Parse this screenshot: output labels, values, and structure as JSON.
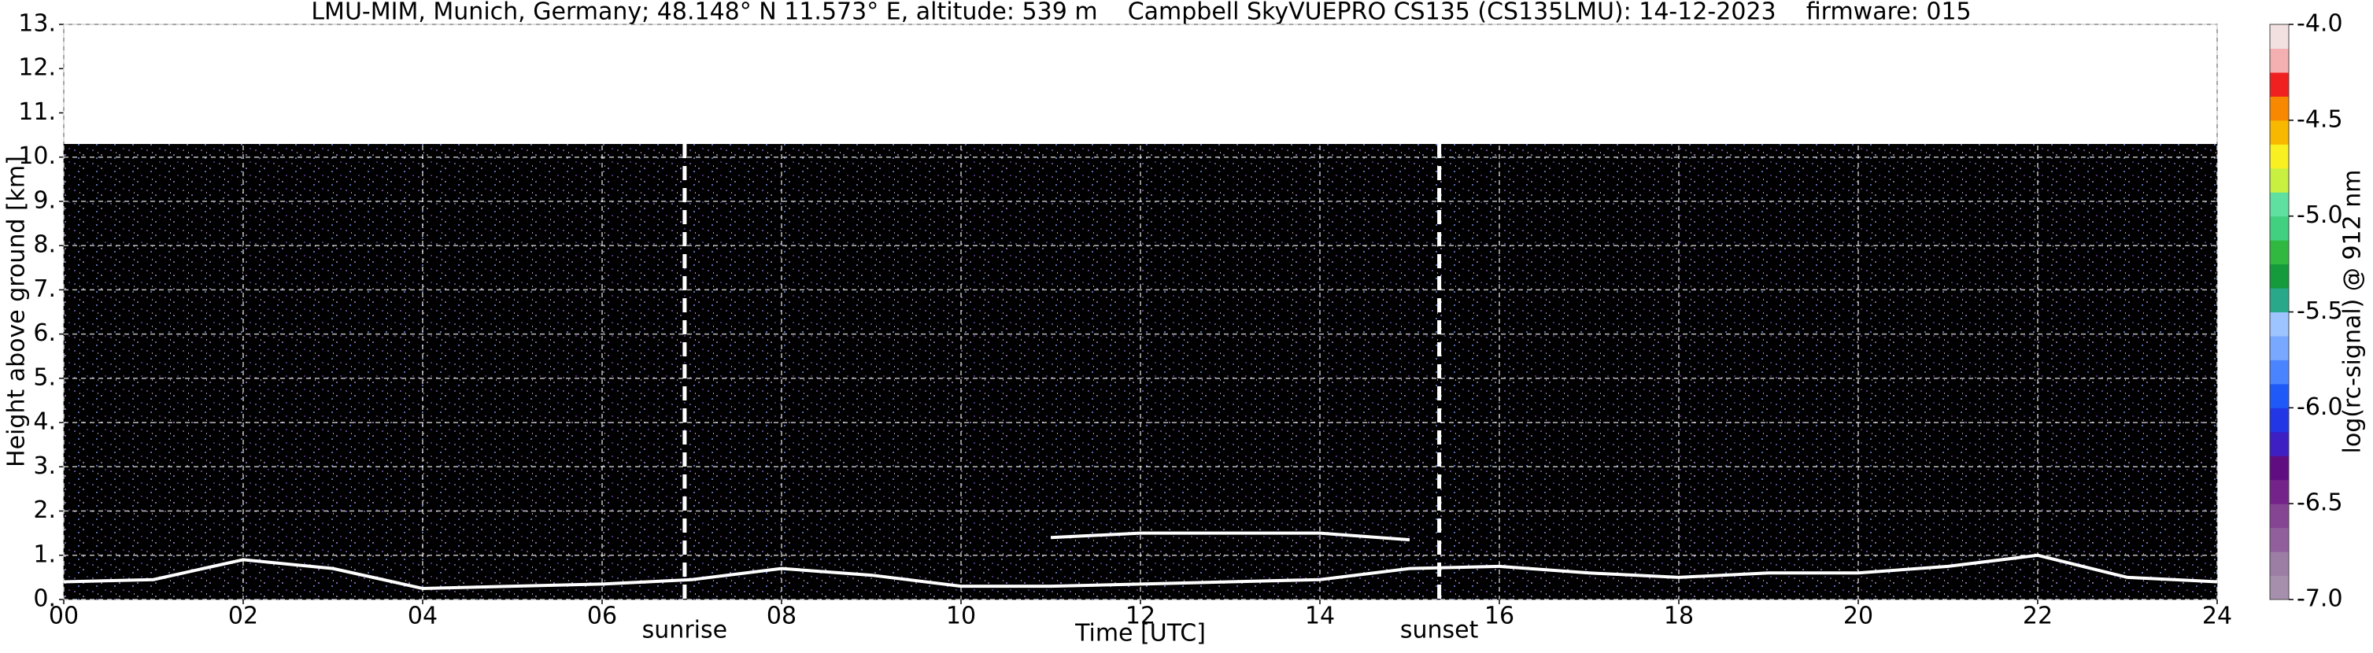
{
  "chart_data": {
    "type": "heatmap",
    "title": "LMU-MIM, Munich, Germany; 48.148° N 11.573° E, altitude: 539 m    Campbell SkyVUEPRO CS135 (CS135LMU): 14-12-2023    firmware: 015",
    "x_label": "Time [UTC]",
    "y_label": "Height above ground [km]",
    "x": [
      0,
      1,
      2,
      3,
      4,
      5,
      6,
      7,
      8,
      9,
      10,
      11,
      12,
      13,
      14,
      15,
      16,
      17,
      18,
      19,
      20,
      21,
      22,
      23,
      24
    ],
    "series": [
      {
        "color": "#ffffff",
        "values": [
          0.4,
          0.45,
          0.9,
          0.7,
          0.25,
          0.3,
          0.35,
          0.45,
          0.7,
          0.55,
          0.3,
          0.3,
          0.35,
          0.4,
          0.45,
          0.7,
          0.75,
          0.6,
          0.5,
          0.6,
          0.6,
          0.75,
          1.0,
          0.5,
          0.4
        ]
      },
      {
        "color": "#ffffff",
        "values": [
          null,
          null,
          null,
          null,
          null,
          null,
          null,
          null,
          null,
          null,
          null,
          1.4,
          1.5,
          1.5,
          1.5,
          1.35,
          null,
          null,
          null,
          null,
          null,
          null,
          null,
          null,
          null
        ]
      }
    ],
    "xlim": [
      0,
      24
    ],
    "xticks": [
      {
        "value": 0,
        "label": "00"
      },
      {
        "value": 2,
        "label": "02"
      },
      {
        "value": 4,
        "label": "04"
      },
      {
        "value": 6,
        "label": "06"
      },
      {
        "value": 8,
        "label": "08"
      },
      10,
      12,
      14,
      16,
      18,
      20,
      22,
      24
    ],
    "ylim": [
      0,
      13
    ],
    "yticks": [
      {
        "value": 0,
        "label": "0."
      },
      {
        "value": 1,
        "label": "1."
      },
      {
        "value": 2,
        "label": "2."
      },
      {
        "value": 3,
        "label": "3."
      },
      {
        "value": 4,
        "label": "4."
      },
      {
        "value": 5,
        "label": "5."
      },
      {
        "value": 6,
        "label": "6."
      },
      {
        "value": 7,
        "label": "7."
      },
      {
        "value": 8,
        "label": "8."
      },
      {
        "value": 9,
        "label": "9."
      },
      {
        "value": 10,
        "label": "10."
      },
      {
        "value": 11,
        "label": "11."
      },
      {
        "value": 12,
        "label": "12."
      },
      {
        "value": 13,
        "label": "13."
      }
    ],
    "grid": true,
    "annotations": [
      {
        "text": "sunrise",
        "x": 6.92
      },
      {
        "text": "sunset",
        "x": 15.33
      }
    ],
    "colorbar": {
      "label": "log(rc-signal) @ 912 nm",
      "lim": [
        -7,
        -4
      ],
      "ticks": [
        {
          "value": -7,
          "label": "-7.0"
        },
        -6.5,
        {
          "value": -6,
          "label": "-6.0"
        },
        -5.5,
        {
          "value": -5,
          "label": "-5.0"
        },
        -4.5,
        {
          "value": -4,
          "label": "-4.0"
        }
      ],
      "colors": [
        "#a58fac",
        "#9c7ea5",
        "#915f9c",
        "#854592",
        "#74238a",
        "#600d82",
        "#3d1fc4",
        "#2236e6",
        "#1f5af8",
        "#4a84ff",
        "#78a8ff",
        "#9ec4ff",
        "#2aa88a",
        "#159a3c",
        "#30b840",
        "#40d080",
        "#60e0a0",
        "#c8f040",
        "#f8f020",
        "#f8b800",
        "#f88800",
        "#f02020",
        "#f4b0b0",
        "#f2e0e0"
      ]
    }
  }
}
